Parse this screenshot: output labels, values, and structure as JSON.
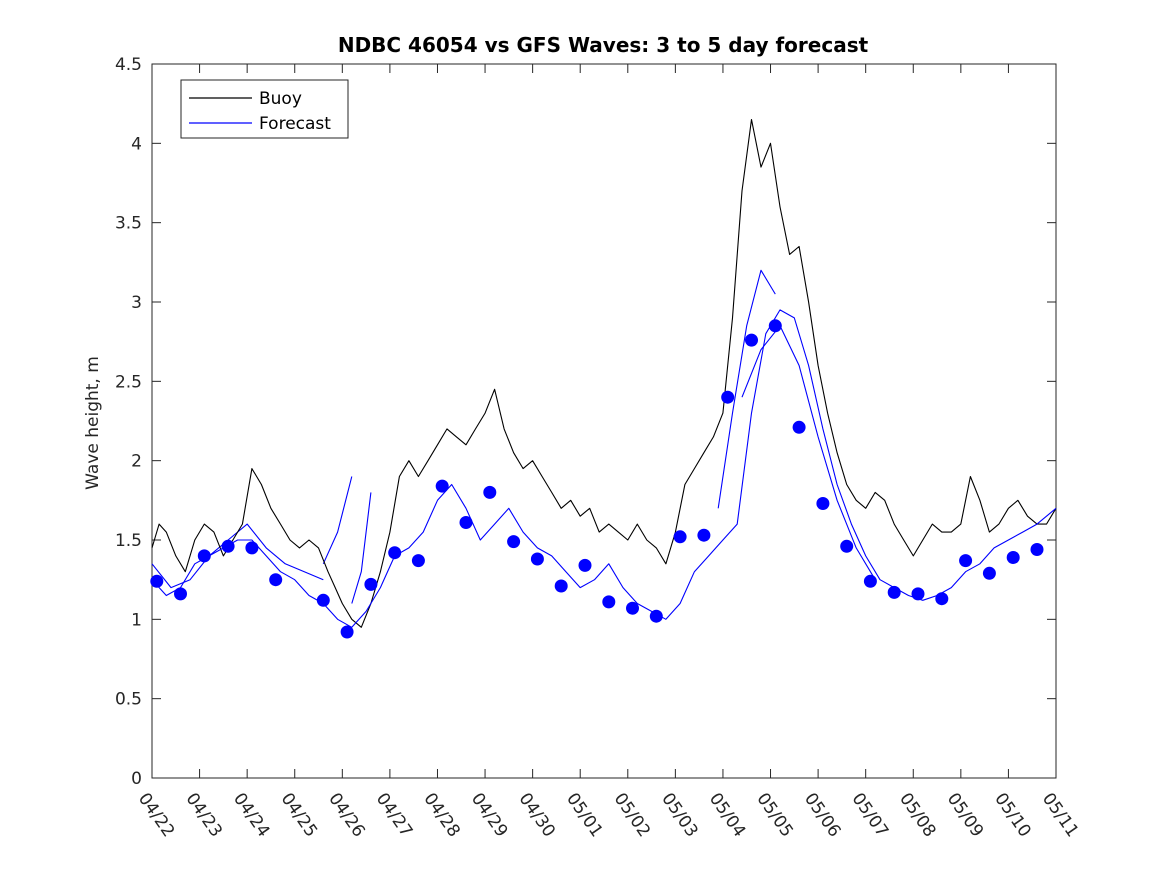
{
  "chart_data": {
    "type": "line",
    "title": "NDBC 46054 vs GFS Waves: 3 to 5 day forecast",
    "xlabel": "",
    "ylabel": "Wave height, m",
    "xlim": [
      0,
      19
    ],
    "ylim": [
      0,
      4.5
    ],
    "yticks": [
      0,
      0.5,
      1,
      1.5,
      2,
      2.5,
      3,
      3.5,
      4,
      4.5
    ],
    "ytick_labels": [
      "0",
      "0.5",
      "1",
      "1.5",
      "2",
      "2.5",
      "3",
      "3.5",
      "4",
      "4.5"
    ],
    "xticks": [
      0,
      1,
      2,
      3,
      4,
      5,
      6,
      7,
      8,
      9,
      10,
      11,
      12,
      13,
      14,
      15,
      16,
      17,
      18,
      19
    ],
    "xtick_labels": [
      "04/22",
      "04/23",
      "04/24",
      "04/25",
      "04/26",
      "04/27",
      "04/28",
      "04/29",
      "04/30",
      "05/01",
      "05/02",
      "05/03",
      "05/04",
      "05/05",
      "05/06",
      "05/07",
      "05/08",
      "05/09",
      "05/10",
      "05/11"
    ],
    "legend": {
      "position": "top-left",
      "entries": [
        {
          "label": "Buoy",
          "color": "#000000"
        },
        {
          "label": "Forecast",
          "color": "#0000ff"
        }
      ]
    },
    "colors": {
      "buoy": "#000000",
      "forecast": "#0000ff",
      "markers": "#0000ff"
    },
    "series": [
      {
        "name": "Buoy",
        "x": [
          0,
          0.15,
          0.3,
          0.5,
          0.7,
          0.9,
          1.1,
          1.3,
          1.5,
          1.7,
          1.9,
          2.1,
          2.3,
          2.5,
          2.7,
          2.9,
          3.1,
          3.3,
          3.5,
          3.7,
          3.85,
          4.0,
          4.2,
          4.4,
          4.6,
          4.8,
          5.0,
          5.2,
          5.4,
          5.6,
          5.8,
          6.0,
          6.2,
          6.4,
          6.6,
          6.8,
          7.0,
          7.2,
          7.4,
          7.6,
          7.8,
          8.0,
          8.2,
          8.4,
          8.6,
          8.8,
          9.0,
          9.2,
          9.4,
          9.6,
          9.8,
          10.0,
          10.2,
          10.4,
          10.6,
          10.8,
          11.0,
          11.2,
          11.4,
          11.6,
          11.8,
          12.0,
          12.2,
          12.4,
          12.6,
          12.8,
          13.0,
          13.2,
          13.4,
          13.6,
          13.8,
          14.0,
          14.2,
          14.4,
          14.6,
          14.8,
          15.0,
          15.2,
          15.4,
          15.6,
          15.8,
          16.0,
          16.2,
          16.4,
          16.6,
          16.8,
          17.0,
          17.2,
          17.4,
          17.6,
          17.8,
          18.0,
          18.2,
          18.4,
          18.6,
          18.8,
          19.0
        ],
        "y": [
          1.45,
          1.6,
          1.55,
          1.4,
          1.3,
          1.5,
          1.6,
          1.55,
          1.4,
          1.5,
          1.6,
          1.95,
          1.85,
          1.7,
          1.6,
          1.5,
          1.45,
          1.5,
          1.45,
          1.3,
          1.2,
          1.1,
          1.0,
          0.95,
          1.1,
          1.3,
          1.55,
          1.9,
          2.0,
          1.9,
          2.0,
          2.1,
          2.2,
          2.15,
          2.1,
          2.2,
          2.3,
          2.45,
          2.2,
          2.05,
          1.95,
          2.0,
          1.9,
          1.8,
          1.7,
          1.75,
          1.65,
          1.7,
          1.55,
          1.6,
          1.55,
          1.5,
          1.6,
          1.5,
          1.45,
          1.35,
          1.55,
          1.85,
          1.95,
          2.05,
          2.15,
          2.3,
          2.9,
          3.7,
          4.15,
          3.85,
          4.0,
          3.6,
          3.3,
          3.35,
          3.0,
          2.6,
          2.3,
          2.05,
          1.85,
          1.75,
          1.7,
          1.8,
          1.75,
          1.6,
          1.5,
          1.4,
          1.5,
          1.6,
          1.55,
          1.55,
          1.6,
          1.9,
          1.75,
          1.55,
          1.6,
          1.7,
          1.75,
          1.65,
          1.6,
          1.6,
          1.7
        ]
      },
      {
        "name": "Forecast",
        "x": [
          0,
          0.3,
          0.6,
          0.9,
          1.2,
          1.5,
          1.8,
          2.1,
          2.4,
          2.7,
          3.0,
          3.3,
          3.6,
          3.9,
          4.2,
          4.5,
          4.8,
          5.1,
          5.4,
          5.7,
          6.0,
          6.3,
          6.6,
          6.9,
          7.2,
          7.5,
          7.8,
          8.1,
          8.4,
          8.7,
          9.0,
          9.3,
          9.6,
          9.9,
          10.2,
          10.5,
          10.8,
          11.1,
          11.4,
          11.7,
          12.0,
          12.3,
          12.6,
          12.9,
          13.2,
          13.5,
          13.8,
          14.1,
          14.4,
          14.7,
          15.0,
          15.3,
          15.6,
          15.9,
          16.2,
          16.5,
          16.8,
          17.1,
          17.4,
          17.7,
          18.0,
          18.3,
          18.6,
          19.0
        ],
        "y": [
          1.25,
          1.15,
          1.2,
          1.35,
          1.4,
          1.45,
          1.5,
          1.5,
          1.4,
          1.3,
          1.25,
          1.15,
          1.1,
          1.0,
          0.95,
          1.05,
          1.2,
          1.4,
          1.45,
          1.55,
          1.75,
          1.85,
          1.7,
          1.5,
          1.6,
          1.7,
          1.55,
          1.45,
          1.4,
          1.3,
          1.2,
          1.25,
          1.35,
          1.2,
          1.1,
          1.05,
          1.0,
          1.1,
          1.3,
          1.4,
          1.5,
          1.6,
          2.3,
          2.8,
          2.95,
          2.9,
          2.6,
          2.2,
          1.85,
          1.6,
          1.4,
          1.25,
          1.2,
          1.15,
          1.12,
          1.15,
          1.2,
          1.3,
          1.35,
          1.45,
          1.5,
          1.55,
          1.6,
          1.7
        ]
      }
    ],
    "forecast_extra_runs": [
      {
        "x": [
          0,
          0.4,
          0.8,
          1.2,
          1.6,
          2.0,
          2.4,
          2.8,
          3.2,
          3.6
        ],
        "y": [
          1.35,
          1.2,
          1.25,
          1.4,
          1.5,
          1.6,
          1.45,
          1.35,
          1.3,
          1.25
        ]
      },
      {
        "x": [
          3.6,
          3.9,
          4.2
        ],
        "y": [
          1.35,
          1.55,
          1.9
        ]
      },
      {
        "x": [
          4.2,
          4.4,
          4.6
        ],
        "y": [
          1.1,
          1.3,
          1.8
        ]
      },
      {
        "x": [
          11.9,
          12.2,
          12.5,
          12.8,
          13.1
        ],
        "y": [
          1.7,
          2.3,
          2.85,
          3.2,
          3.05
        ]
      },
      {
        "x": [
          12.4,
          12.8,
          13.2,
          13.6,
          14.0,
          14.4,
          14.8,
          15.2
        ],
        "y": [
          2.4,
          2.7,
          2.85,
          2.6,
          2.15,
          1.75,
          1.45,
          1.25
        ]
      }
    ],
    "forecast_markers": {
      "x": [
        0.1,
        0.6,
        1.1,
        1.6,
        2.1,
        2.6,
        3.6,
        4.1,
        4.6,
        5.1,
        5.6,
        6.1,
        6.6,
        7.1,
        7.6,
        8.1,
        8.6,
        9.1,
        9.6,
        10.1,
        10.6,
        11.1,
        11.6,
        12.1,
        12.6,
        13.1,
        13.6,
        14.1,
        14.6,
        15.1,
        15.6,
        16.1,
        16.6,
        17.1,
        17.6,
        18.1,
        18.6
      ],
      "y": [
        1.24,
        1.16,
        1.4,
        1.46,
        1.45,
        1.25,
        1.12,
        0.92,
        1.22,
        1.42,
        1.37,
        1.84,
        1.61,
        1.8,
        1.49,
        1.38,
        1.21,
        1.34,
        1.11,
        1.07,
        1.02,
        1.52,
        1.53,
        2.4,
        2.76,
        2.85,
        2.21,
        1.73,
        1.46,
        1.24,
        1.17,
        1.16,
        1.13,
        1.37,
        1.29,
        1.39,
        1.44
      ]
    }
  }
}
